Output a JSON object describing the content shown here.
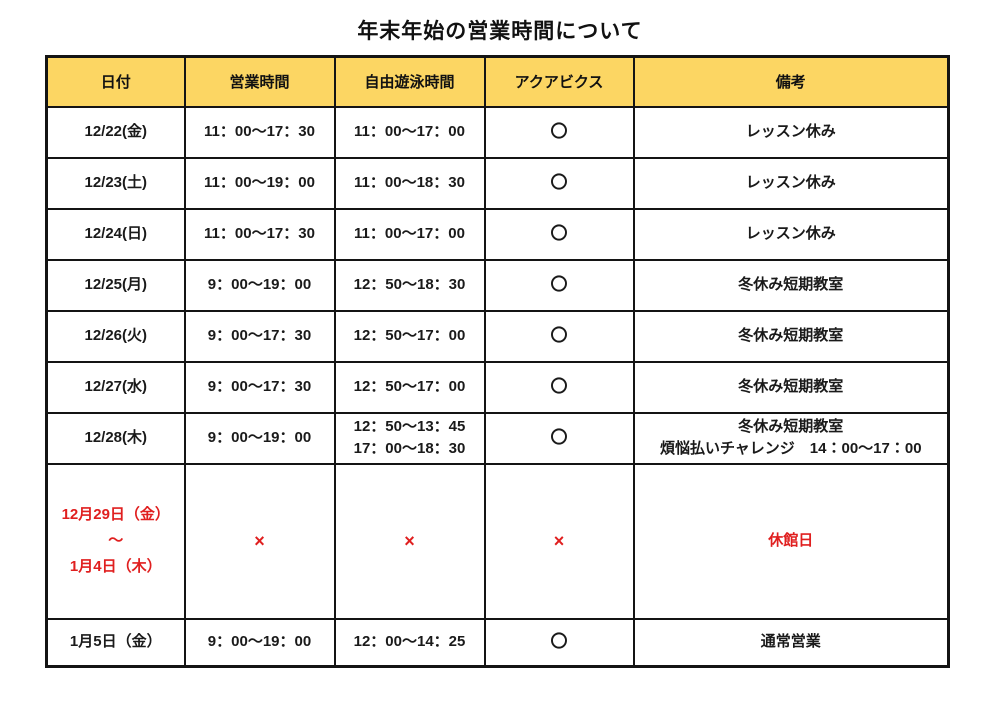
{
  "title": "年末年始の営業時間について",
  "colors": {
    "header_bg": "#fcd663",
    "border": "#141414",
    "text": "#1a1a1a",
    "closed_red": "#e01f1f",
    "page_bg": "#ffffff"
  },
  "table": {
    "headers": [
      "日付",
      "営業時間",
      "自由遊泳時間",
      "アクアビクス",
      "備考"
    ],
    "rows": [
      {
        "red": false,
        "cells": [
          [
            "12/22(金)"
          ],
          [
            "11：00～17：30"
          ],
          [
            "11：00～17：00"
          ],
          [
            "〇"
          ],
          [
            "レッスン休み"
          ]
        ]
      },
      {
        "red": false,
        "cells": [
          [
            "12/23(土)"
          ],
          [
            "11：00～19：00"
          ],
          [
            "11：00～18：30"
          ],
          [
            "〇"
          ],
          [
            "レッスン休み"
          ]
        ]
      },
      {
        "red": false,
        "cells": [
          [
            "12/24(日)"
          ],
          [
            "11：00～17：30"
          ],
          [
            "11：00～17：00"
          ],
          [
            "〇"
          ],
          [
            "レッスン休み"
          ]
        ]
      },
      {
        "red": false,
        "cells": [
          [
            "12/25(月)"
          ],
          [
            "9：00～19：00"
          ],
          [
            "12：50～18：30"
          ],
          [
            "〇"
          ],
          [
            "冬休み短期教室"
          ]
        ]
      },
      {
        "red": false,
        "cells": [
          [
            "12/26(火)"
          ],
          [
            "9：00～17：30"
          ],
          [
            "12：50～17：00"
          ],
          [
            "〇"
          ],
          [
            "冬休み短期教室"
          ]
        ]
      },
      {
        "red": false,
        "cells": [
          [
            "12/27(水)"
          ],
          [
            "9：00～17：30"
          ],
          [
            "12：50～17：00"
          ],
          [
            "〇"
          ],
          [
            "冬休み短期教室"
          ]
        ]
      },
      {
        "red": false,
        "cells": [
          [
            "12/28(木)"
          ],
          [
            "9：00～19：00"
          ],
          [
            "12：50～13：45",
            "17：00～18：30"
          ],
          [
            "〇"
          ],
          [
            "冬休み短期教室",
            "煩悩払いチャレンジ　14：00～17：00"
          ]
        ]
      },
      {
        "red": true,
        "cells": [
          [
            "12月29日（金）",
            "～",
            "1月4日（木）"
          ],
          [
            "×"
          ],
          [
            "×"
          ],
          [
            "×"
          ],
          [
            "休館日"
          ]
        ]
      },
      {
        "red": false,
        "last": true,
        "cells": [
          [
            "1月5日（金）"
          ],
          [
            "9：00～19：00"
          ],
          [
            "12：00～14：25"
          ],
          [
            "〇"
          ],
          [
            "通常営業"
          ]
        ]
      }
    ]
  }
}
